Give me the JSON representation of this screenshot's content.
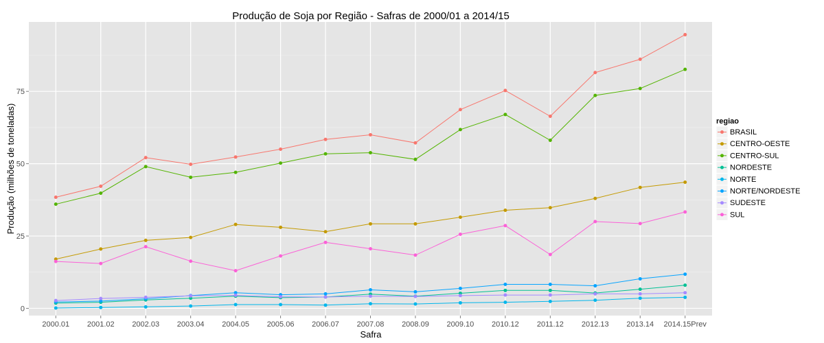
{
  "chart_data": {
    "type": "line",
    "title": "Produção de Soja por Região - Safras de 2000/01 a 2014/15",
    "xlabel": "Safra",
    "ylabel": "Produção (milhões de toneladas)",
    "categories": [
      "2000.01",
      "2001.02",
      "2002.03",
      "2003.04",
      "2004.05",
      "2005.06",
      "2006.07",
      "2007.08",
      "2008.09",
      "2009.10",
      "2010.12",
      "2011.12",
      "2012.13",
      "2013.14",
      "2014.15Prev"
    ],
    "y_ticks": [
      0,
      25,
      50,
      75
    ],
    "ylim": [
      -2.5,
      99
    ],
    "grid": true,
    "legend": {
      "title": "regiao",
      "position": "right"
    },
    "series": [
      {
        "name": "BRASIL",
        "color": "#F8766D",
        "values": [
          38.4,
          42.2,
          52.1,
          49.8,
          52.3,
          55.0,
          58.4,
          60.0,
          57.2,
          68.7,
          75.3,
          66.4,
          81.5,
          86.1,
          94.6
        ]
      },
      {
        "name": "CENTRO-OESTE",
        "color": "#C49A00",
        "values": [
          17.0,
          20.5,
          23.5,
          24.5,
          29.0,
          28.0,
          26.5,
          29.2,
          29.2,
          31.5,
          33.9,
          34.8,
          38.0,
          41.8,
          43.6
        ]
      },
      {
        "name": "CENTRO-SUL",
        "color": "#53B400",
        "values": [
          36.0,
          39.8,
          49.0,
          45.3,
          47.0,
          50.2,
          53.4,
          53.8,
          51.5,
          61.8,
          67.0,
          58.1,
          73.6,
          76.0,
          82.6
        ]
      },
      {
        "name": "NORDESTE",
        "color": "#00C094",
        "values": [
          1.8,
          2.1,
          2.9,
          3.5,
          4.2,
          3.7,
          3.9,
          4.9,
          4.2,
          5.2,
          6.2,
          6.2,
          5.3,
          6.6,
          8.0
        ]
      },
      {
        "name": "NORTE",
        "color": "#00B6EB",
        "values": [
          0.1,
          0.3,
          0.5,
          0.8,
          1.3,
          1.3,
          1.1,
          1.6,
          1.5,
          1.9,
          2.1,
          2.4,
          2.8,
          3.5,
          3.8
        ]
      },
      {
        "name": "NORTE/NORDESTE",
        "color": "#06A4FF",
        "values": [
          2.2,
          2.5,
          3.3,
          4.4,
          5.4,
          4.7,
          5.0,
          6.4,
          5.7,
          6.9,
          8.3,
          8.3,
          7.8,
          10.2,
          11.8
        ]
      },
      {
        "name": "SUDESTE",
        "color": "#A58AFF",
        "values": [
          2.7,
          3.4,
          3.8,
          4.3,
          4.5,
          4.0,
          3.9,
          4.2,
          4.1,
          4.4,
          4.6,
          4.6,
          5.0,
          5.0,
          5.4
        ]
      },
      {
        "name": "SUL",
        "color": "#FB61D7",
        "values": [
          16.2,
          15.5,
          21.3,
          16.3,
          13.0,
          18.1,
          22.8,
          20.6,
          18.4,
          25.6,
          28.6,
          18.6,
          30.0,
          29.3,
          33.3
        ]
      }
    ]
  }
}
